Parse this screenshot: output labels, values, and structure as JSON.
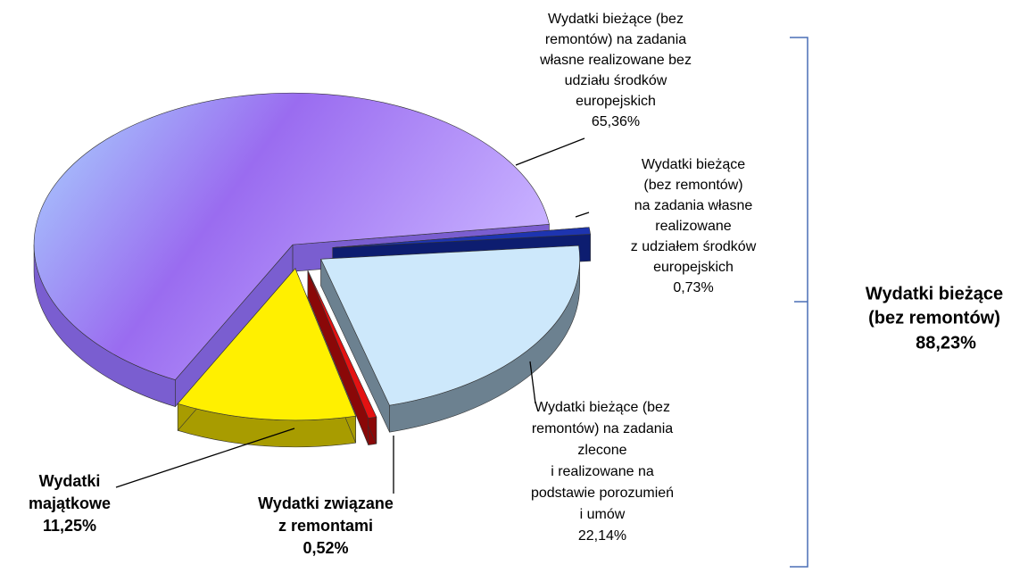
{
  "chart_data": {
    "type": "pie",
    "categories": [
      [
        "Wydatki bieżące (bez",
        "remontów) na zadania",
        "własne realizowane bez",
        "udziału środków",
        "europejskich"
      ],
      [
        "Wydatki bieżące",
        "(bez remontów)",
        "na zadania własne",
        "realizowane",
        "z udziałem środków",
        "europejskich"
      ],
      [
        "Wydatki bieżące (bez",
        "remontów) na zadania",
        "zlecone",
        "i realizowane na",
        "podstawie porozumień",
        "i umów"
      ],
      [
        "Wydatki związane",
        "z remontami"
      ],
      [
        "Wydatki",
        "majątkowe"
      ]
    ],
    "values": [
      65.36,
      0.73,
      22.14,
      0.52,
      11.25
    ],
    "value_labels": [
      "65,36%",
      "0,73%",
      "22,14%",
      "0,52%",
      "11,25%"
    ],
    "colors": [
      "#9d7ff2",
      "#1d34b0",
      "#cde8fb",
      "#e31212",
      "#fff000"
    ],
    "side_colors": [
      "#7a5ed0",
      "#0d1d70",
      "#6c8190",
      "#8a0808",
      "#a89c00"
    ],
    "annotation": {
      "lines": [
        "Wydatki bieżące",
        "(bez remontów)"
      ],
      "label": "88,23%"
    }
  }
}
